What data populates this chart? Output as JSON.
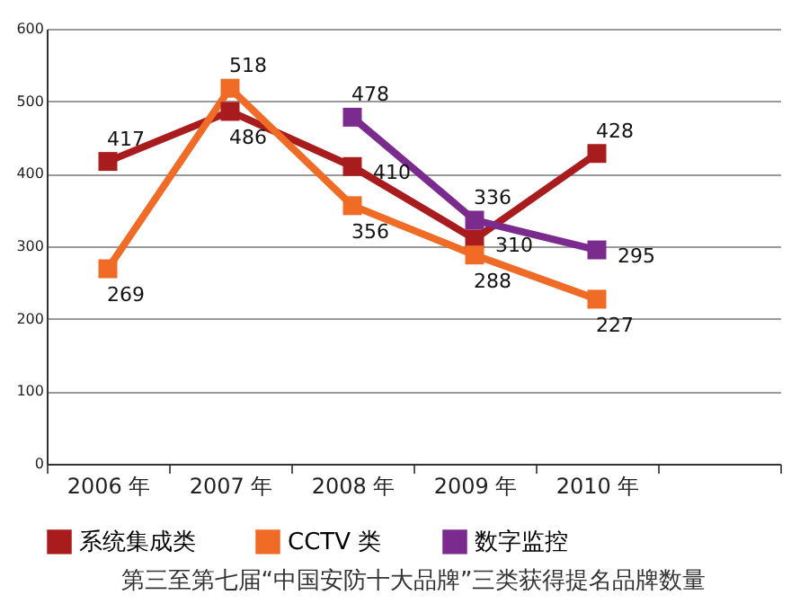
{
  "chart_data": {
    "type": "line",
    "title": "第三至第七届“中国安防十大品牌”三类获得提名品牌数量",
    "categories": [
      "2006 年",
      "2007 年",
      "2008 年",
      "2009 年",
      "2010 年",
      null
    ],
    "series": [
      {
        "name": "系统集成类",
        "color": "#a81c1e",
        "values": [
          417,
          486,
          410,
          310,
          428,
          null
        ]
      },
      {
        "name": "CCTV 类",
        "color": "#ef6b26",
        "values": [
          269,
          518,
          356,
          288,
          227,
          null
        ]
      },
      {
        "name": "数字监控",
        "color": "#7b2a8e",
        "values": [
          null,
          null,
          478,
          336,
          295,
          null
        ]
      }
    ],
    "ylim": [
      0,
      600
    ],
    "yticks": [
      0,
      100,
      200,
      300,
      400,
      500,
      600
    ],
    "grid": "y",
    "legend": "bottom",
    "marker": "square",
    "data_labels": true
  }
}
